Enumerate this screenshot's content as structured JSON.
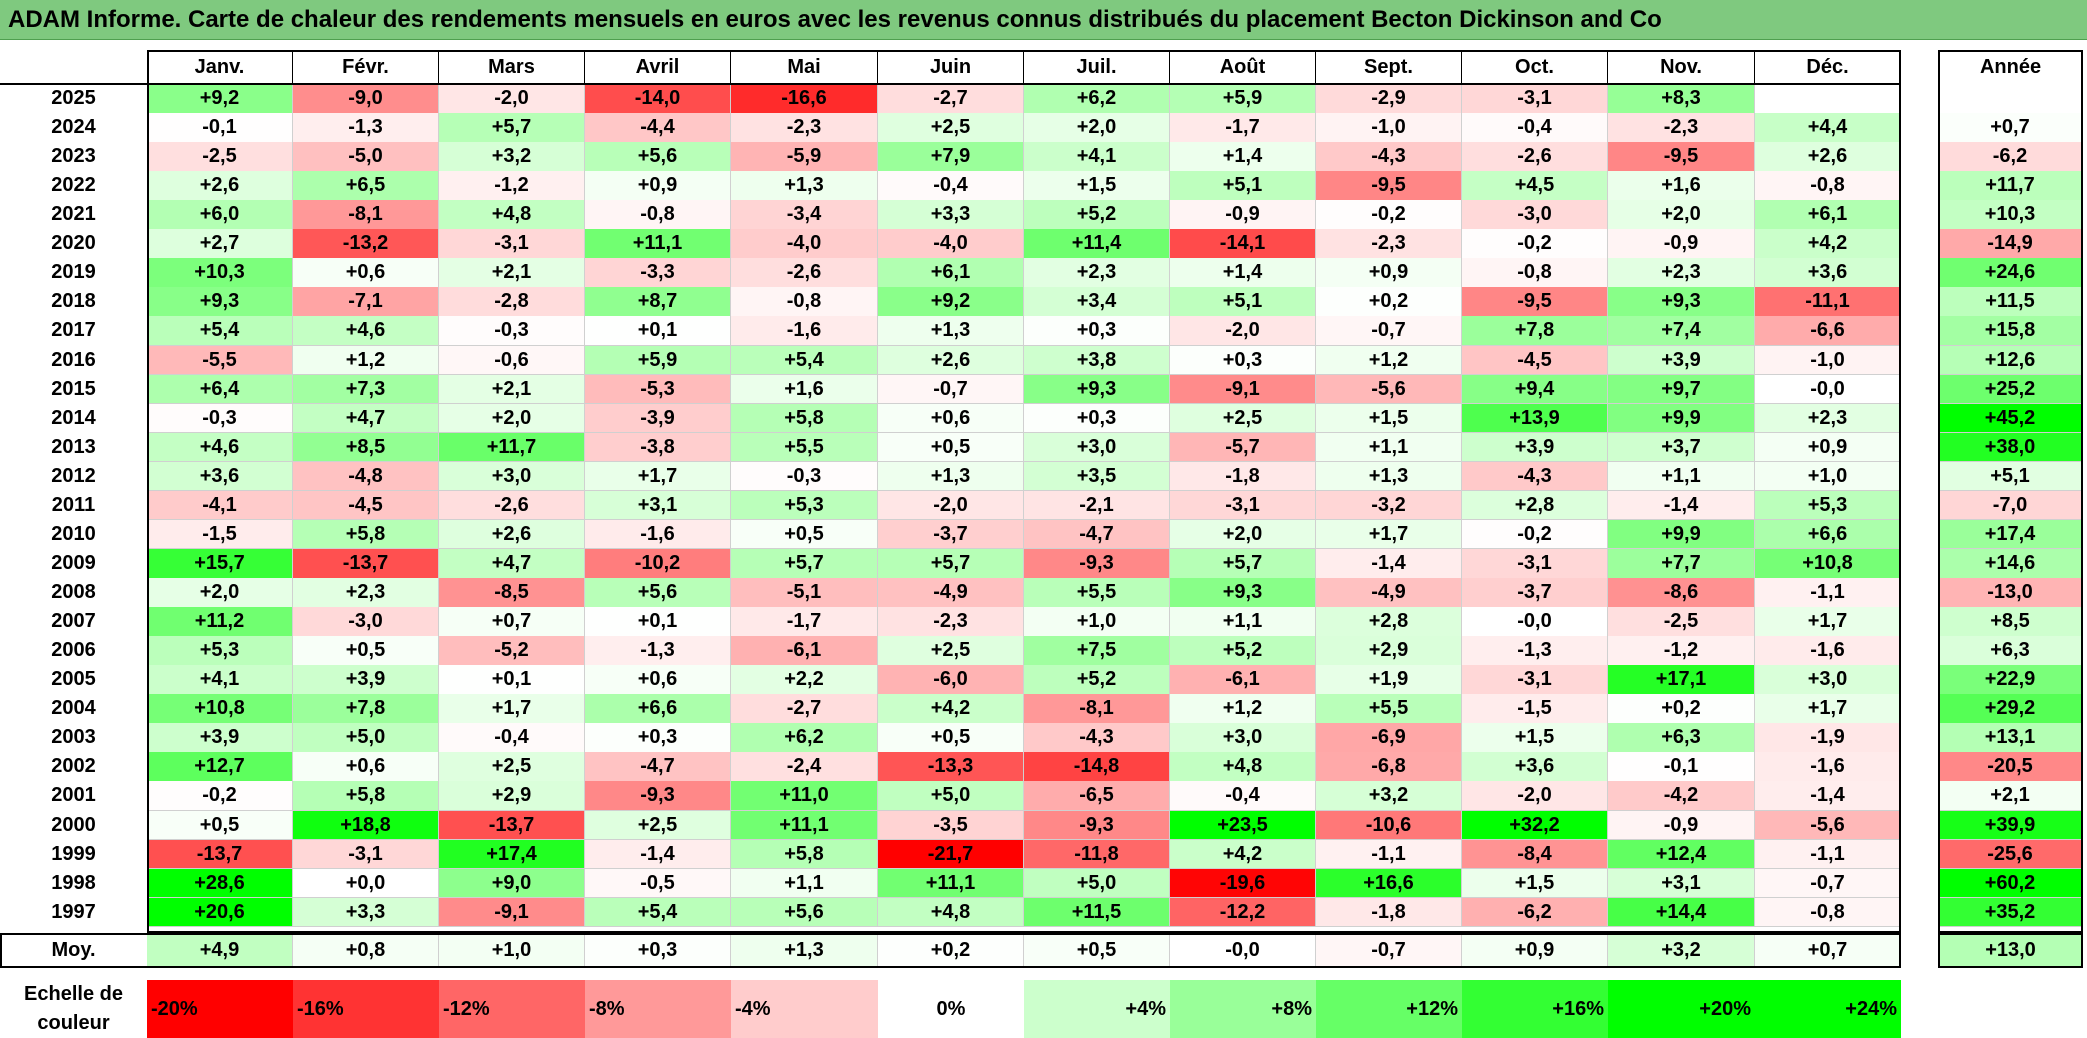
{
  "title": "ADAM Informe. Carte de chaleur des rendements mensuels en euros avec les revenus connus distribués du placement Becton Dickinson and Co",
  "chart_data": {
    "type": "heatmap",
    "months": [
      "Janv.",
      "Févr.",
      "Mars",
      "Avril",
      "Mai",
      "Juin",
      "Juil.",
      "Août",
      "Sept.",
      "Oct.",
      "Nov.",
      "Déc."
    ],
    "year_header": "Année",
    "rows": [
      {
        "year": "2025",
        "values": [
          "+9,2",
          "-9,0",
          "-2,0",
          "-14,0",
          "-16,6",
          "-2,7",
          "+6,2",
          "+5,9",
          "-2,9",
          "-3,1",
          "+8,3",
          ""
        ],
        "annual": ""
      },
      {
        "year": "2024",
        "values": [
          "-0,1",
          "-1,3",
          "+5,7",
          "-4,4",
          "-2,3",
          "+2,5",
          "+2,0",
          "-1,7",
          "-1,0",
          "-0,4",
          "-2,3",
          "+4,4"
        ],
        "annual": "+0,7"
      },
      {
        "year": "2023",
        "values": [
          "-2,5",
          "-5,0",
          "+3,2",
          "+5,6",
          "-5,9",
          "+7,9",
          "+4,1",
          "+1,4",
          "-4,3",
          "-2,6",
          "-9,5",
          "+2,6"
        ],
        "annual": "-6,2"
      },
      {
        "year": "2022",
        "values": [
          "+2,6",
          "+6,5",
          "-1,2",
          "+0,9",
          "+1,3",
          "-0,4",
          "+1,5",
          "+5,1",
          "-9,5",
          "+4,5",
          "+1,6",
          "-0,8"
        ],
        "annual": "+11,7"
      },
      {
        "year": "2021",
        "values": [
          "+6,0",
          "-8,1",
          "+4,8",
          "-0,8",
          "-3,4",
          "+3,3",
          "+5,2",
          "-0,9",
          "-0,2",
          "-3,0",
          "+2,0",
          "+6,1"
        ],
        "annual": "+10,3"
      },
      {
        "year": "2020",
        "values": [
          "+2,7",
          "-13,2",
          "-3,1",
          "+11,1",
          "-4,0",
          "-4,0",
          "+11,4",
          "-14,1",
          "-2,3",
          "-0,2",
          "-0,9",
          "+4,2"
        ],
        "annual": "-14,9"
      },
      {
        "year": "2019",
        "values": [
          "+10,3",
          "+0,6",
          "+2,1",
          "-3,3",
          "-2,6",
          "+6,1",
          "+2,3",
          "+1,4",
          "+0,9",
          "-0,8",
          "+2,3",
          "+3,6"
        ],
        "annual": "+24,6"
      },
      {
        "year": "2018",
        "values": [
          "+9,3",
          "-7,1",
          "-2,8",
          "+8,7",
          "-0,8",
          "+9,2",
          "+3,4",
          "+5,1",
          "+0,2",
          "-9,5",
          "+9,3",
          "-11,1"
        ],
        "annual": "+11,5"
      },
      {
        "year": "2017",
        "values": [
          "+5,4",
          "+4,6",
          "-0,3",
          "+0,1",
          "-1,6",
          "+1,3",
          "+0,3",
          "-2,0",
          "-0,7",
          "+7,8",
          "+7,4",
          "-6,6"
        ],
        "annual": "+15,8"
      },
      {
        "year": "2016",
        "values": [
          "-5,5",
          "+1,2",
          "-0,6",
          "+5,9",
          "+5,4",
          "+2,6",
          "+3,8",
          "+0,3",
          "+1,2",
          "-4,5",
          "+3,9",
          "-1,0"
        ],
        "annual": "+12,6"
      },
      {
        "year": "2015",
        "values": [
          "+6,4",
          "+7,3",
          "+2,1",
          "-5,3",
          "+1,6",
          "-0,7",
          "+9,3",
          "-9,1",
          "-5,6",
          "+9,4",
          "+9,7",
          "-0,0"
        ],
        "annual": "+25,2"
      },
      {
        "year": "2014",
        "values": [
          "-0,3",
          "+4,7",
          "+2,0",
          "-3,9",
          "+5,8",
          "+0,6",
          "+0,3",
          "+2,5",
          "+1,5",
          "+13,9",
          "+9,9",
          "+2,3"
        ],
        "annual": "+45,2"
      },
      {
        "year": "2013",
        "values": [
          "+4,6",
          "+8,5",
          "+11,7",
          "-3,8",
          "+5,5",
          "+0,5",
          "+3,0",
          "-5,7",
          "+1,1",
          "+3,9",
          "+3,7",
          "+0,9"
        ],
        "annual": "+38,0"
      },
      {
        "year": "2012",
        "values": [
          "+3,6",
          "-4,8",
          "+3,0",
          "+1,7",
          "-0,3",
          "+1,3",
          "+3,5",
          "-1,8",
          "+1,3",
          "-4,3",
          "+1,1",
          "+1,0"
        ],
        "annual": "+5,1"
      },
      {
        "year": "2011",
        "values": [
          "-4,1",
          "-4,5",
          "-2,6",
          "+3,1",
          "+5,3",
          "-2,0",
          "-2,1",
          "-3,1",
          "-3,2",
          "+2,8",
          "-1,4",
          "+5,3"
        ],
        "annual": "-7,0"
      },
      {
        "year": "2010",
        "values": [
          "-1,5",
          "+5,8",
          "+2,6",
          "-1,6",
          "+0,5",
          "-3,7",
          "-4,7",
          "+2,0",
          "+1,7",
          "-0,2",
          "+9,9",
          "+6,6"
        ],
        "annual": "+17,4"
      },
      {
        "year": "2009",
        "values": [
          "+15,7",
          "-13,7",
          "+4,7",
          "-10,2",
          "+5,7",
          "+5,7",
          "-9,3",
          "+5,7",
          "-1,4",
          "-3,1",
          "+7,7",
          "+10,8"
        ],
        "annual": "+14,6"
      },
      {
        "year": "2008",
        "values": [
          "+2,0",
          "+2,3",
          "-8,5",
          "+5,6",
          "-5,1",
          "-4,9",
          "+5,5",
          "+9,3",
          "-4,9",
          "-3,7",
          "-8,6",
          "-1,1"
        ],
        "annual": "-13,0"
      },
      {
        "year": "2007",
        "values": [
          "+11,2",
          "-3,0",
          "+0,7",
          "+0,1",
          "-1,7",
          "-2,3",
          "+1,0",
          "+1,1",
          "+2,8",
          "-0,0",
          "-2,5",
          "+1,7"
        ],
        "annual": "+8,5"
      },
      {
        "year": "2006",
        "values": [
          "+5,3",
          "+0,5",
          "-5,2",
          "-1,3",
          "-6,1",
          "+2,5",
          "+7,5",
          "+5,2",
          "+2,9",
          "-1,3",
          "-1,2",
          "-1,6"
        ],
        "annual": "+6,3"
      },
      {
        "year": "2005",
        "values": [
          "+4,1",
          "+3,9",
          "+0,1",
          "+0,6",
          "+2,2",
          "-6,0",
          "+5,2",
          "-6,1",
          "+1,9",
          "-3,1",
          "+17,1",
          "+3,0"
        ],
        "annual": "+22,9"
      },
      {
        "year": "2004",
        "values": [
          "+10,8",
          "+7,8",
          "+1,7",
          "+6,6",
          "-2,7",
          "+4,2",
          "-8,1",
          "+1,2",
          "+5,5",
          "-1,5",
          "+0,2",
          "+1,7"
        ],
        "annual": "+29,2"
      },
      {
        "year": "2003",
        "values": [
          "+3,9",
          "+5,0",
          "-0,4",
          "+0,3",
          "+6,2",
          "+0,5",
          "-4,3",
          "+3,0",
          "-6,9",
          "+1,5",
          "+6,3",
          "-1,9"
        ],
        "annual": "+13,1"
      },
      {
        "year": "2002",
        "values": [
          "+12,7",
          "+0,6",
          "+2,5",
          "-4,7",
          "-2,4",
          "-13,3",
          "-14,8",
          "+4,8",
          "-6,8",
          "+3,6",
          "-0,1",
          "-1,6"
        ],
        "annual": "-20,5"
      },
      {
        "year": "2001",
        "values": [
          "-0,2",
          "+5,8",
          "+2,9",
          "-9,3",
          "+11,0",
          "+5,0",
          "-6,5",
          "-0,4",
          "+3,2",
          "-2,0",
          "-4,2",
          "-1,4"
        ],
        "annual": "+2,1"
      },
      {
        "year": "2000",
        "values": [
          "+0,5",
          "+18,8",
          "-13,7",
          "+2,5",
          "+11,1",
          "-3,5",
          "-9,3",
          "+23,5",
          "-10,6",
          "+32,2",
          "-0,9",
          "-5,6"
        ],
        "annual": "+39,9"
      },
      {
        "year": "1999",
        "values": [
          "-13,7",
          "-3,1",
          "+17,4",
          "-1,4",
          "+5,8",
          "-21,7",
          "-11,8",
          "+4,2",
          "-1,1",
          "-8,4",
          "+12,4",
          "-1,1"
        ],
        "annual": "-25,6"
      },
      {
        "year": "1998",
        "values": [
          "+28,6",
          "+0,0",
          "+9,0",
          "-0,5",
          "+1,1",
          "+11,1",
          "+5,0",
          "-19,6",
          "+16,6",
          "+1,5",
          "+3,1",
          "-0,7"
        ],
        "annual": "+60,2"
      },
      {
        "year": "1997",
        "values": [
          "+20,6",
          "+3,3",
          "-9,1",
          "+5,4",
          "+5,6",
          "+4,8",
          "+11,5",
          "-12,2",
          "-1,8",
          "-6,2",
          "+14,4",
          "-0,8"
        ],
        "annual": "+35,2"
      }
    ],
    "average": {
      "label": "Moy.",
      "values": [
        "+4,9",
        "+0,8",
        "+1,0",
        "+0,3",
        "+1,3",
        "+0,2",
        "+0,5",
        "-0,0",
        "-0,7",
        "+0,9",
        "+3,2",
        "+0,7"
      ],
      "annual": "+13,0"
    },
    "legend": {
      "title": [
        "Echelle de",
        "couleur"
      ],
      "labels": [
        "-20%",
        "-16%",
        "-12%",
        "-8%",
        "-4%",
        "0%",
        "+4%",
        "+8%",
        "+12%",
        "+16%",
        "+20%",
        "+24%"
      ],
      "values": [
        -20,
        -16,
        -12,
        -8,
        -4,
        0,
        4,
        8,
        12,
        16,
        20,
        24
      ]
    },
    "colors": {
      "negative": "#ff0000",
      "positive": "#00ff00",
      "neutral": "#ffffff"
    }
  }
}
